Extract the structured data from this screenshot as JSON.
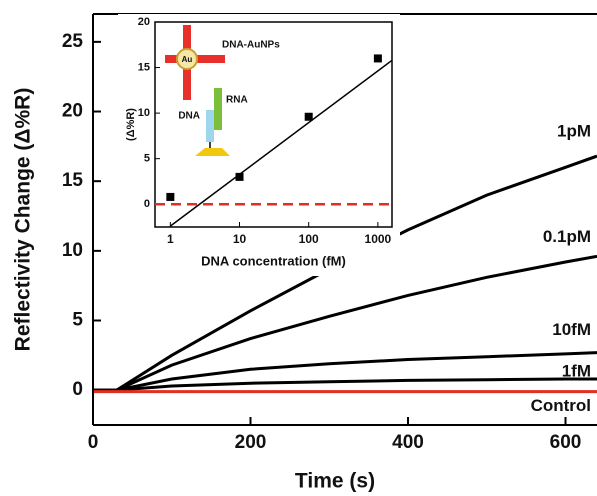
{
  "chart_data": [
    {
      "type": "line",
      "xlabel": "Time (s)",
      "ylabel": "Reflectivity Change (Δ%R)",
      "x": [
        0,
        30,
        100,
        200,
        300,
        400,
        500,
        600,
        640
      ],
      "series": [
        {
          "name": "1pM",
          "color": "#000000",
          "values": [
            0,
            0,
            2.5,
            5.7,
            8.7,
            11.5,
            14,
            16,
            16.8
          ]
        },
        {
          "name": "0.1pM",
          "color": "#000000",
          "values": [
            0,
            0,
            1.8,
            3.7,
            5.3,
            6.8,
            8.1,
            9.2,
            9.6
          ]
        },
        {
          "name": "10fM",
          "color": "#000000",
          "values": [
            0,
            0,
            0.8,
            1.5,
            1.9,
            2.2,
            2.4,
            2.6,
            2.7
          ]
        },
        {
          "name": "1fM",
          "color": "#000000",
          "values": [
            0,
            0,
            0.3,
            0.5,
            0.6,
            0.7,
            0.75,
            0.8,
            0.8
          ]
        },
        {
          "name": "Control",
          "color": "#e03020",
          "values": [
            -0.1,
            -0.1,
            -0.1,
            -0.1,
            -0.1,
            -0.1,
            -0.1,
            -0.1,
            -0.1
          ]
        }
      ],
      "xlim": [
        0,
        640
      ],
      "ylim": [
        -2.5,
        27
      ],
      "xticks": [
        0,
        200,
        400,
        600
      ],
      "yticks": [
        0,
        5,
        10,
        15,
        20,
        25
      ]
    },
    {
      "type": "scatter",
      "xscale": "log",
      "xlabel": "DNA concentration (fM)",
      "ylabel": "(Δ%R)",
      "x": [
        1,
        10,
        100,
        1000
      ],
      "values": [
        0.8,
        3,
        9.6,
        16
      ],
      "color": "#000000",
      "fit": {
        "x": [
          1,
          1600
        ],
        "values": [
          -2.4,
          15.8
        ],
        "color": "#000000"
      },
      "baseline": {
        "value": 0,
        "color": "#e03020"
      },
      "xlim": [
        0.6,
        1600
      ],
      "ylim": [
        -2.5,
        20
      ],
      "xticks": [
        1,
        10,
        100,
        1000
      ],
      "yticks": [
        0,
        5,
        10,
        15,
        20
      ],
      "annotations": [
        "DNA-AuNPs",
        "Au",
        "RNA",
        "DNA"
      ]
    }
  ]
}
